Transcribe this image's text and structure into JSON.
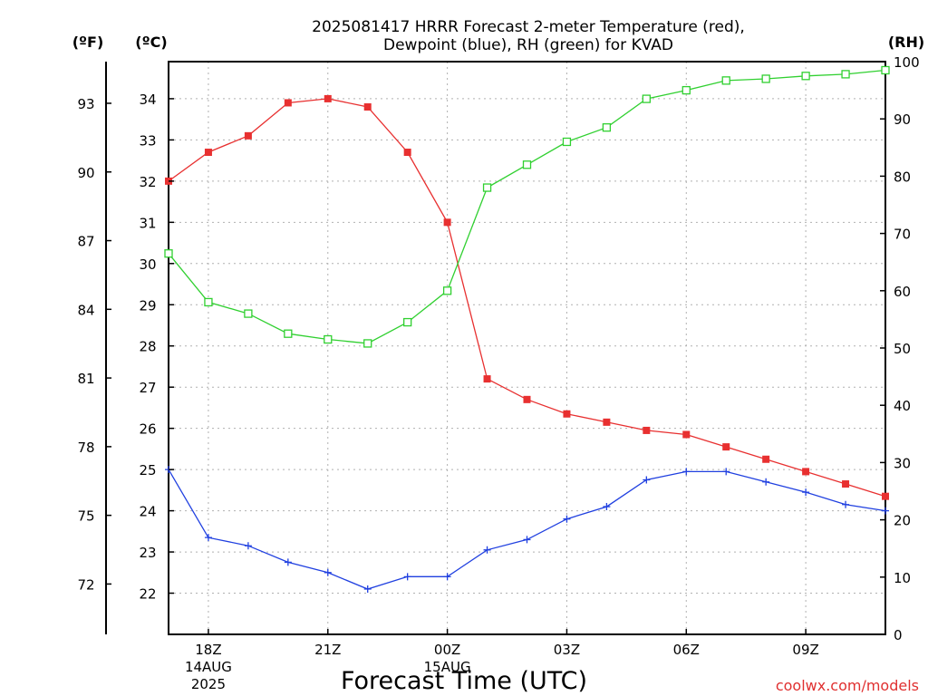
{
  "chart_data": {
    "type": "line",
    "title_line1": "2025081417 HRRR Forecast 2-meter Temperature (red),",
    "title_line2": "Dewpoint (blue), RH (green) for KVAD",
    "xlabel": "Forecast Time (UTC)",
    "credit": "coolwx.com/models",
    "left_outer_unit": "(ºF)",
    "left_inner_unit": "(ºC)",
    "right_unit": "(RH)",
    "x": [
      17,
      18,
      19,
      20,
      21,
      22,
      23,
      24,
      25,
      26,
      27,
      28,
      29,
      30,
      31,
      32,
      33,
      34,
      35
    ],
    "xlim": [
      17,
      35
    ],
    "x_ticks": [
      {
        "x": 18,
        "lines": [
          "18Z",
          "14AUG",
          "2025"
        ]
      },
      {
        "x": 21,
        "lines": [
          "21Z"
        ]
      },
      {
        "x": 24,
        "lines": [
          "00Z",
          "15AUG"
        ]
      },
      {
        "x": 27,
        "lines": [
          "03Z"
        ]
      },
      {
        "x": 30,
        "lines": [
          "06Z"
        ]
      },
      {
        "x": 33,
        "lines": [
          "09Z"
        ]
      }
    ],
    "ylim_c": [
      21.0,
      34.9
    ],
    "y_ticks_c": [
      22,
      23,
      24,
      25,
      26,
      27,
      28,
      29,
      30,
      31,
      32,
      33,
      34
    ],
    "y_ticks_f": [
      72,
      75,
      78,
      81,
      84,
      87,
      90,
      93
    ],
    "ylim_rh": [
      0,
      100
    ],
    "y_ticks_rh": [
      0,
      10,
      20,
      30,
      40,
      50,
      60,
      70,
      80,
      90,
      100
    ],
    "grid": true,
    "series": [
      {
        "key": "temperature",
        "unit": "C",
        "color": "#e83030",
        "marker": "filled-square",
        "values": [
          32.0,
          32.7,
          33.1,
          33.9,
          34.0,
          33.8,
          32.7,
          31.0,
          27.2,
          26.7,
          26.35,
          26.15,
          25.95,
          25.85,
          25.55,
          25.25,
          24.95,
          24.65,
          24.35
        ]
      },
      {
        "key": "dewpoint",
        "unit": "C",
        "color": "#2040e0",
        "marker": "plus",
        "values": [
          25.0,
          23.35,
          23.15,
          22.75,
          22.5,
          22.1,
          22.4,
          22.4,
          23.05,
          23.3,
          23.8,
          24.1,
          24.75,
          24.95,
          24.95,
          24.7,
          24.45,
          24.15,
          24.0
        ]
      },
      {
        "key": "relative_humidity",
        "unit": "%",
        "color": "#30d030",
        "marker": "open-square",
        "values": [
          66.5,
          58.0,
          56.0,
          52.5,
          51.5,
          50.8,
          54.5,
          60.0,
          78.0,
          82.0,
          86.0,
          88.5,
          93.5,
          95.0,
          96.7,
          97.0,
          97.5,
          97.8,
          98.5
        ]
      }
    ]
  }
}
